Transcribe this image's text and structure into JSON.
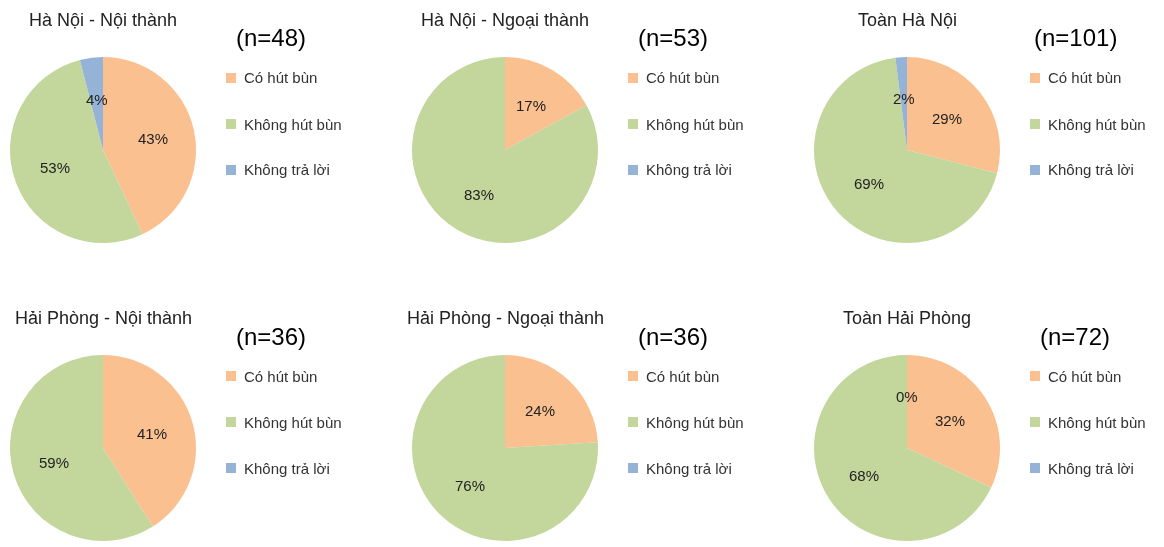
{
  "chart_data": [
    {
      "type": "pie",
      "title": "Hà Nội - Nội thành",
      "subtitle": "(n=48)",
      "categories": [
        "Có hút bùn",
        "Không hút bùn",
        "Không trả lời"
      ],
      "values": [
        43,
        53,
        4
      ],
      "colors": [
        "#fac090",
        "#c3d69b",
        "#95b3d7"
      ],
      "value_labels": [
        "43%",
        "53%",
        "4%"
      ],
      "legend": "right"
    },
    {
      "type": "pie",
      "title": "Hà Nội - Ngoại thành",
      "subtitle": "(n=53)",
      "categories": [
        "Có hút bùn",
        "Không hút bùn",
        "Không trả lời"
      ],
      "values": [
        17,
        83,
        0
      ],
      "colors": [
        "#fac090",
        "#c3d69b",
        "#95b3d7"
      ],
      "value_labels": [
        "17%",
        "83%",
        null
      ],
      "legend": "right"
    },
    {
      "type": "pie",
      "title": "Toàn Hà Nội",
      "subtitle": "(n=101)",
      "categories": [
        "Có hút bùn",
        "Không hút bùn",
        "Không trả lời"
      ],
      "values": [
        29,
        69,
        2
      ],
      "colors": [
        "#fac090",
        "#c3d69b",
        "#95b3d7"
      ],
      "value_labels": [
        "29%",
        "69%",
        "2%"
      ],
      "legend": "right"
    },
    {
      "type": "pie",
      "title": "Hải Phòng - Nội thành",
      "subtitle": "(n=36)",
      "categories": [
        "Có hút bùn",
        "Không hút bùn",
        "Không trả lời"
      ],
      "values": [
        41,
        59,
        0
      ],
      "colors": [
        "#fac090",
        "#c3d69b",
        "#95b3d7"
      ],
      "value_labels": [
        "41%",
        "59%",
        null
      ],
      "legend": "right"
    },
    {
      "type": "pie",
      "title": "Hải Phòng - Ngoại thành",
      "subtitle": "(n=36)",
      "categories": [
        "Có hút bùn",
        "Không hút bùn",
        "Không trả lời"
      ],
      "values": [
        24,
        76,
        0
      ],
      "colors": [
        "#fac090",
        "#c3d69b",
        "#95b3d7"
      ],
      "value_labels": [
        "24%",
        "76%",
        null
      ],
      "legend": "right"
    },
    {
      "type": "pie",
      "title": "Toàn Hải Phòng",
      "subtitle": "(n=72)",
      "categories": [
        "Có hút bùn",
        "Không hút bùn",
        "Không trả lời"
      ],
      "values": [
        32,
        68,
        0
      ],
      "colors": [
        "#fac090",
        "#c3d69b",
        "#95b3d7"
      ],
      "value_labels": [
        "32%",
        "68%",
        "0%"
      ],
      "legend": "right"
    }
  ]
}
